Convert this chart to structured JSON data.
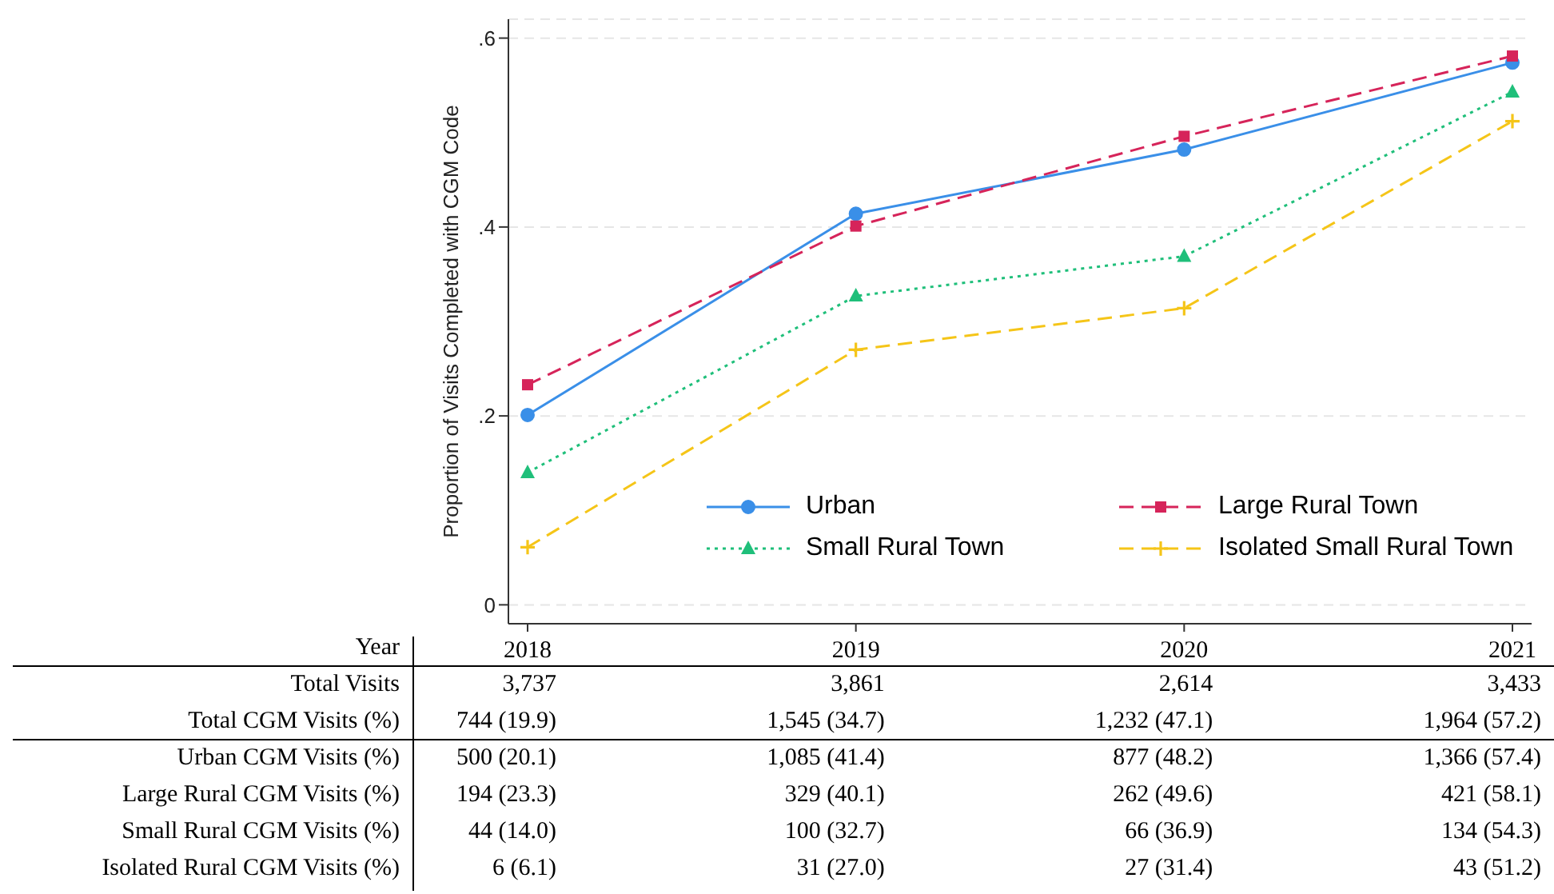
{
  "chart_data": {
    "type": "line",
    "ylabel": "Proportion of Visits Completed with CGM Code",
    "xlabel": "Year",
    "categories": [
      "2018",
      "2019",
      "2020",
      "2021"
    ],
    "ylim": [
      -0.02,
      0.62
    ],
    "yticks": [
      {
        "value": 0,
        "label": "0"
      },
      {
        "value": 0.2,
        "label": ".2"
      },
      {
        "value": 0.4,
        "label": ".4"
      },
      {
        "value": 0.6,
        "label": ".6"
      }
    ],
    "grid": "y",
    "legend": "bottom right",
    "series": [
      {
        "name": "Urban",
        "color": "#3a8fe8",
        "values": [
          0.201,
          0.414,
          0.482,
          0.574
        ],
        "marker": "circle",
        "line_style": "solid"
      },
      {
        "name": "Large Rural Town",
        "color": "#d6245a",
        "values": [
          0.233,
          0.401,
          0.496,
          0.581
        ],
        "marker": "square",
        "line_style": "dashed"
      },
      {
        "name": "Small Rural Town",
        "color": "#1fbf7a",
        "values": [
          0.14,
          0.327,
          0.369,
          0.543
        ],
        "marker": "triangle",
        "line_style": "dotted"
      },
      {
        "name": "Isolated Small Rural Town",
        "color": "#f5c518",
        "values": [
          0.061,
          0.27,
          0.314,
          0.512
        ],
        "marker": "cross",
        "line_style": "dashed"
      }
    ],
    "annotations": [
      "Total Visits",
      "3,737",
      "3,861",
      "2,614",
      "3,433",
      "Total CGM Visits (%)",
      "744 (19.9)",
      "1,545 (34.7)",
      "1,232 (47.1)",
      "1,964 (57.2)",
      "Urban CGM Visits (%)",
      "500 (20.1)",
      "1,085 (41.4)",
      "877 (48.2)",
      "1,366 (57.4)",
      "Large Rural CGM Visits (%)",
      "194 (23.3)",
      "329 (40.1)",
      "262 (49.6)",
      "421 (58.1)",
      "Small Rural CGM Visits (%)",
      "44 (14.0)",
      "100 (32.7)",
      "66 (36.9)",
      "134 (54.3)",
      "Isolated Rural CGM Visits (%)",
      "6 (6.1)",
      "31 (27.0)",
      "27 (31.4)",
      "43 (51.2)"
    ]
  }
}
